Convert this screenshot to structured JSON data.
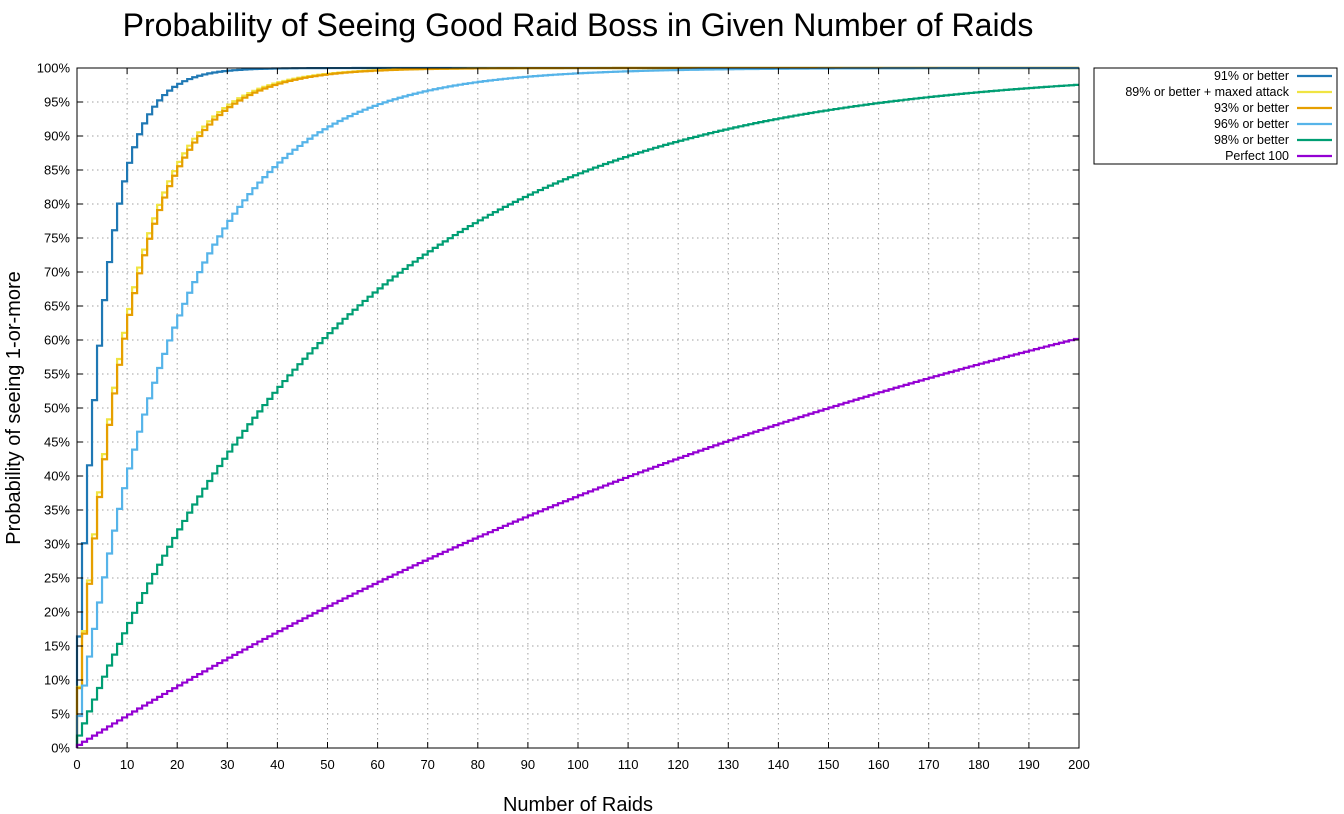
{
  "chart_data": {
    "type": "line",
    "title": "Probability of Seeing Good Raid Boss in Given Number of Raids",
    "xlabel": "Number of Raids",
    "ylabel": "Probability of seeing 1-or-more",
    "xlim": [
      0,
      200
    ],
    "ylim": [
      0,
      100
    ],
    "x_ticks": [
      0,
      10,
      20,
      30,
      40,
      50,
      60,
      70,
      80,
      90,
      100,
      110,
      120,
      130,
      140,
      150,
      160,
      170,
      180,
      190,
      200
    ],
    "x_tick_labels": [
      "0",
      "10",
      "20",
      "30",
      "40",
      "50",
      "60",
      "70",
      "80",
      "90",
      "100",
      "110",
      "120",
      "130",
      "140",
      "150",
      "160",
      "170",
      "180",
      "190",
      "200"
    ],
    "y_ticks": [
      0,
      5,
      10,
      15,
      20,
      25,
      30,
      35,
      40,
      45,
      50,
      55,
      60,
      65,
      70,
      75,
      80,
      85,
      90,
      95,
      100
    ],
    "y_tick_labels": [
      "0%",
      "5%",
      "10%",
      "15%",
      "20%",
      "25%",
      "30%",
      "35%",
      "40%",
      "45%",
      "50%",
      "55%",
      "60%",
      "65%",
      "70%",
      "75%",
      "80%",
      "85%",
      "90%",
      "95%",
      "100%"
    ],
    "grid": true,
    "step": true,
    "legend_position": "outside-top-right",
    "model": "cumulative probability P(n) = 1 - (1 - p)^n for n raids",
    "series": [
      {
        "name": "91% or better",
        "p": 0.164,
        "color": "#1f78b4"
      },
      {
        "name": "89% or better + maxed attack",
        "p": 0.09,
        "color": "#f0e442"
      },
      {
        "name": "93% or better",
        "p": 0.088,
        "color": "#e69f00"
      },
      {
        "name": "96% or better",
        "p": 0.047,
        "color": "#56b4e9"
      },
      {
        "name": "98% or better",
        "p": 0.0183,
        "color": "#009e73"
      },
      {
        "name": "Perfect 100",
        "p": 0.00459,
        "color": "#9400d3"
      }
    ]
  }
}
